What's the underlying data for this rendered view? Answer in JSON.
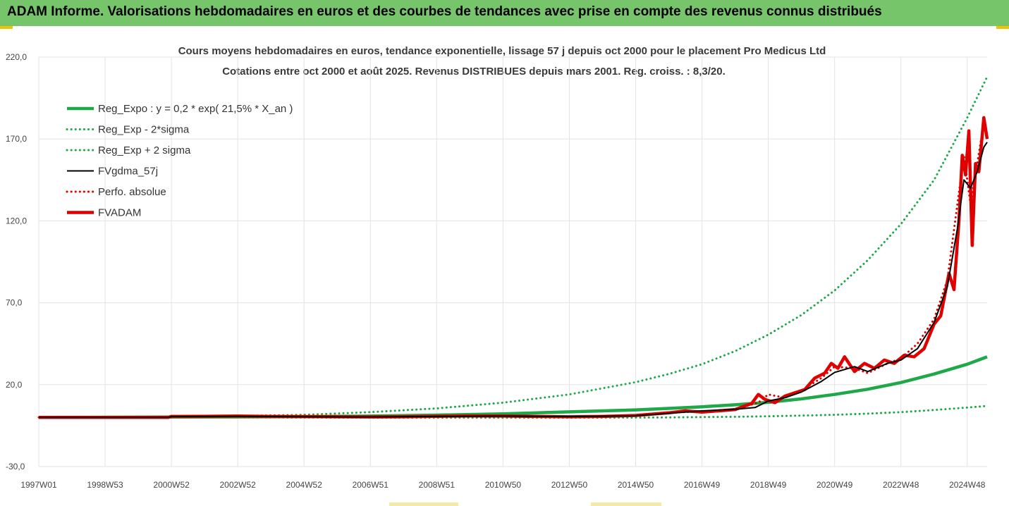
{
  "header": {
    "title": "ADAM Informe. Valorisations hebdomadaires en euros et des courbes de tendances avec prise en compte des revenus connus distribués"
  },
  "colors": {
    "header_bg": "#77c56b",
    "accent": "#f2c400",
    "reg_expo": "#1fa84a",
    "reg_band": "#1fa84a",
    "fvgdma": "#000000",
    "perfo": "#e00000",
    "fvadam": "#e00000",
    "grid": "#e3e3e3"
  },
  "chart_data": {
    "type": "line",
    "title": "Cours moyens hebdomadaires en euros, tendance exponentielle, lissage 57 j depuis oct 2000 pour le placement Pro Medicus Ltd",
    "subtitle": "Cotations entre oct 2000 et août 2025. Revenus DISTRIBUES depuis mars 2001. Reg. croiss. : 8,3/20.",
    "xlabel": "",
    "ylabel": "",
    "ylim": [
      -30,
      220
    ],
    "yticks": [
      "-30,0",
      "20,0",
      "70,0",
      "120,0",
      "170,0",
      "220,0"
    ],
    "ytick_values": [
      -30,
      20,
      70,
      120,
      170,
      220
    ],
    "xlim": [
      1997.0,
      2025.6
    ],
    "xticks": [
      "1997W01",
      "1998W53",
      "2000W52",
      "2002W52",
      "2004W52",
      "2006W51",
      "2008W51",
      "2010W50",
      "2012W50",
      "2014W50",
      "2016W49",
      "2018W49",
      "2020W49",
      "2022W48",
      "2024W48"
    ],
    "xtick_values": [
      1997.0,
      1999.0,
      2001.0,
      2003.0,
      2005.0,
      2007.0,
      2009.0,
      2011.0,
      2013.0,
      2015.0,
      2017.0,
      2019.0,
      2021.0,
      2023.0,
      2025.0
    ],
    "grid": true,
    "legend_position": "top-left",
    "series": [
      {
        "name": "Reg_Expo : y = 0,2 * exp( 21,5% *  X_an )",
        "style": "solid-thick",
        "color": "#1fa84a",
        "x": [
          1997,
          2001,
          2003,
          2005,
          2007,
          2009,
          2011,
          2013,
          2015,
          2016,
          2017,
          2018,
          2019,
          2020,
          2021,
          2022,
          2023,
          2024,
          2025,
          2025.6
        ],
        "y": [
          0,
          0.2,
          0.3,
          0.5,
          0.8,
          1.4,
          2.2,
          3.4,
          4.6,
          5.5,
          6.5,
          7.7,
          9.2,
          11.3,
          14.0,
          17.2,
          21.3,
          26.5,
          32.5,
          37.0
        ]
      },
      {
        "name": "Reg_Exp - 2*sigma",
        "style": "dotted",
        "color": "#1fa84a",
        "x": [
          2001,
          2003,
          2005,
          2007,
          2009,
          2011,
          2013,
          2015,
          2016,
          2017,
          2018,
          2019,
          2020,
          2021,
          2022,
          2023,
          2024,
          2025,
          2025.6
        ],
        "y": [
          0.2,
          0.0,
          -0.1,
          -0.2,
          -0.2,
          -0.2,
          -0.2,
          -0.1,
          0.0,
          0.2,
          0.4,
          0.7,
          1.1,
          1.6,
          2.3,
          3.2,
          4.5,
          6.0,
          7.0
        ]
      },
      {
        "name": "Reg_Exp + 2 sigma",
        "style": "dotted",
        "color": "#1fa84a",
        "x": [
          2001,
          2003,
          2005,
          2007,
          2009,
          2011,
          2013,
          2015,
          2016,
          2017,
          2018,
          2019,
          2020,
          2021,
          2022,
          2023,
          2024,
          2025,
          2025.6
        ],
        "y": [
          0.5,
          0.9,
          1.6,
          3.2,
          5.5,
          9.0,
          14.0,
          21.5,
          26.5,
          32.5,
          40.5,
          50.5,
          62.5,
          77.5,
          96.0,
          118.0,
          145.0,
          183.0,
          208.0
        ]
      },
      {
        "name": "FVgdma_57j",
        "style": "solid",
        "color": "#000000",
        "x": [
          1997,
          2000.9,
          2001.0,
          2003,
          2005,
          2007,
          2009,
          2011,
          2013,
          2015,
          2016,
          2017,
          2018,
          2018.6,
          2019.0,
          2019.5,
          2020,
          2020.6,
          2021.0,
          2021.6,
          2022.0,
          2022.6,
          2023.0,
          2023.5,
          2024.0,
          2024.4,
          2024.7,
          2024.9,
          2025.1,
          2025.3,
          2025.5,
          2025.6
        ],
        "y": [
          0,
          0,
          0.5,
          0.7,
          0.4,
          0.3,
          0.6,
          0.8,
          0.5,
          1.0,
          2.5,
          4.0,
          5.0,
          6.0,
          10.0,
          12.0,
          15.5,
          22.0,
          27.5,
          31.0,
          28.0,
          33.0,
          35.0,
          42.0,
          58.0,
          80.0,
          115.0,
          145.0,
          140.0,
          150.0,
          165.0,
          168.0
        ]
      },
      {
        "name": "Perfo. absolue",
        "style": "dotted",
        "color": "#e00000",
        "x": [
          1997,
          2000.9,
          2001.0,
          2003,
          2005,
          2007,
          2009,
          2011,
          2013,
          2015,
          2016,
          2017,
          2018,
          2018.7,
          2019.0,
          2019.5,
          2020,
          2020.6,
          2021.0,
          2021.6,
          2022.0,
          2022.6,
          2023.0,
          2023.5,
          2024.0,
          2024.4,
          2024.7,
          2024.9,
          2025.1,
          2025.3,
          2025.5,
          2025.6
        ],
        "y": [
          0,
          0,
          0.6,
          0.8,
          0.5,
          0.3,
          0.7,
          0.8,
          0.4,
          1.2,
          3.0,
          3.5,
          5.0,
          9.0,
          14.0,
          12.0,
          16.5,
          24.0,
          31.0,
          30.0,
          27.0,
          33.0,
          36.0,
          45.0,
          60.0,
          84.0,
          130.0,
          160.0,
          130.0,
          155.0,
          180.0,
          170.0
        ]
      },
      {
        "name": "FVADAM",
        "style": "solid-thick",
        "color": "#e00000",
        "x": [
          1997,
          2000.9,
          2001.0,
          2002.0,
          2003,
          2004,
          2005,
          2006,
          2007,
          2008,
          2009,
          2010,
          2011,
          2012,
          2013,
          2014,
          2015,
          2015.5,
          2016,
          2016.5,
          2017,
          2017.5,
          2018,
          2018.5,
          2018.7,
          2018.9,
          2019.2,
          2019.5,
          2019.8,
          2020.1,
          2020.4,
          2020.7,
          2020.9,
          2021.1,
          2021.3,
          2021.6,
          2021.9,
          2022.2,
          2022.5,
          2022.8,
          2023.1,
          2023.4,
          2023.7,
          2024.0,
          2024.2,
          2024.45,
          2024.6,
          2024.75,
          2024.85,
          2024.95,
          2025.05,
          2025.15,
          2025.25,
          2025.35,
          2025.42,
          2025.5,
          2025.6
        ],
        "y": [
          0,
          0,
          0.6,
          0.7,
          0.8,
          0.6,
          0.5,
          0.4,
          0.3,
          0.4,
          0.7,
          0.9,
          0.8,
          0.6,
          0.4,
          0.6,
          1.2,
          2.0,
          2.8,
          4.0,
          3.2,
          4.0,
          4.8,
          8.5,
          14.0,
          11.0,
          9.0,
          13.0,
          15.0,
          17.0,
          24.0,
          27.0,
          33.0,
          30.0,
          37.0,
          28.0,
          33.0,
          30.0,
          35.0,
          33.0,
          38.0,
          37.0,
          42.0,
          57.0,
          62.0,
          88.0,
          78.0,
          120.0,
          160.0,
          148.0,
          175.0,
          105.0,
          155.0,
          150.0,
          165.0,
          183.0,
          170.0
        ]
      }
    ]
  }
}
